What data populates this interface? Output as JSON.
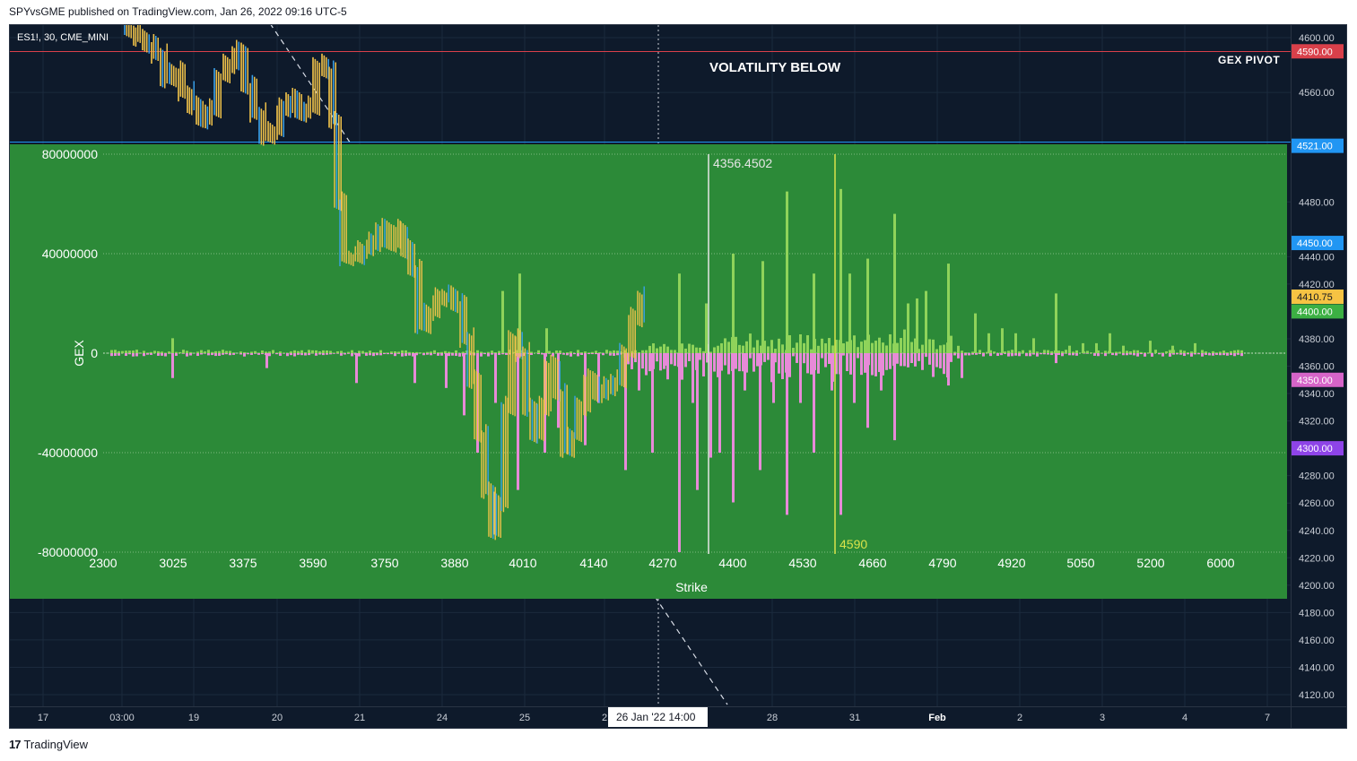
{
  "header": {
    "published": "SPYvsGME published on TradingView.com, Jan 26, 2022 09:16 UTC-5"
  },
  "footer": {
    "brand": "TradingView"
  },
  "price_chart": {
    "symbol": "ES1!, 30, CME_MINI",
    "annotation": "VOLATILITY BELOW",
    "pivot_label": "GEX PIVOT",
    "y_ticks": [
      "4600.00",
      "4560.00",
      "4480.00",
      "4440.00",
      "4420.00",
      "4380.00",
      "4360.00",
      "4340.00",
      "4320.00",
      "4280.00",
      "4260.00",
      "4240.00",
      "4220.00",
      "4200.00",
      "4180.00",
      "4160.00",
      "4140.00",
      "4120.00"
    ],
    "price_badges": [
      {
        "label": "4590.00",
        "color": "#d9404a",
        "value": 4590
      },
      {
        "label": "4521.00",
        "color": "#2196f3",
        "value": 4521
      },
      {
        "label": "4450.00",
        "color": "#2196f3",
        "value": 4450
      },
      {
        "label": "4410.75",
        "color": "#f6c343",
        "value": 4410.75
      },
      {
        "label": "4400.00",
        "color": "#3cb043",
        "value": 4400
      },
      {
        "label": "4350.00",
        "color": "#d664c8",
        "value": 4350
      },
      {
        "label": "4300.00",
        "color": "#8e44e8",
        "value": 4300
      }
    ],
    "x_ticks": [
      "17",
      "03:00",
      "19",
      "20",
      "21",
      "24",
      "25",
      "2",
      "28",
      "31",
      "Feb",
      "2",
      "3",
      "4",
      "7"
    ],
    "crosshair_label": "26 Jan '22   14:00"
  },
  "chart_data": {
    "type": "bar",
    "title": "",
    "xlabel": "Strike",
    "ylabel": "GEX",
    "y_ticks": [
      "80000000",
      "40000000",
      "0",
      "-40000000",
      "-80000000"
    ],
    "x_ticks": [
      "2300",
      "3025",
      "3375",
      "3590",
      "3750",
      "3880",
      "4010",
      "4140",
      "4270",
      "4400",
      "4530",
      "4660",
      "4790",
      "4920",
      "5050",
      "5200",
      "6000"
    ],
    "ylim": [
      -80000000,
      80000000
    ],
    "annotations": [
      {
        "label": "4356.4502",
        "color": "#e6e6e6"
      },
      {
        "label": "4590",
        "color": "#d9e34a"
      }
    ],
    "series": [
      {
        "name": "",
        "color": "#8fd35a"
      },
      {
        "name": "",
        "color": "#e78ad8"
      }
    ]
  }
}
